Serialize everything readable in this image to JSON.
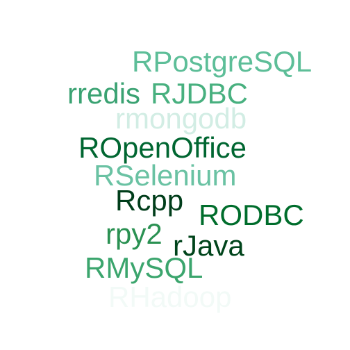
{
  "words": [
    {
      "id": "w-rpostgresql",
      "text": "RPostgreSQL",
      "color": "#5dbe98"
    },
    {
      "id": "w-rredis",
      "text": "rredis",
      "color": "#3aa272"
    },
    {
      "id": "w-rjdbc",
      "text": "RJDBC",
      "color": "#48b07f"
    },
    {
      "id": "w-rmongodb",
      "text": "rmongodb",
      "color": "#d2ede4"
    },
    {
      "id": "w-ropenoffice",
      "text": "ROpenOffice",
      "color": "#006631"
    },
    {
      "id": "w-rselenium",
      "text": "RSelenium",
      "color": "#6ac2a3"
    },
    {
      "id": "w-rcpp",
      "text": "Rcpp",
      "color": "#003d1a"
    },
    {
      "id": "w-rodbc",
      "text": "RODBC",
      "color": "#006d2c"
    },
    {
      "id": "w-rpy2",
      "text": "rpy2",
      "color": "#2a9152"
    },
    {
      "id": "w-rjava",
      "text": "rJava",
      "color": "#00441b"
    },
    {
      "id": "w-rmysql",
      "text": "RMySQL",
      "color": "#3ba56d"
    },
    {
      "id": "w-rhadoop",
      "text": "RHadoop",
      "color": "#f2faf7"
    }
  ]
}
